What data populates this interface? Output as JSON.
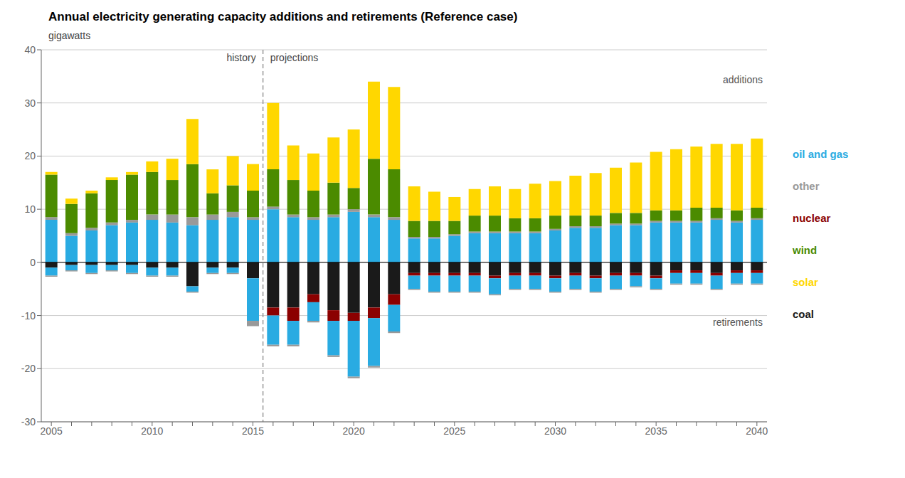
{
  "chart_data": {
    "type": "bar",
    "title": "Annual electricity generating capacity additions and retirements (Reference case)",
    "ylabel": "gigawatts",
    "stacked": true,
    "grid": true,
    "legend": "right",
    "categories": [
      "2005",
      null,
      null,
      null,
      null,
      "2010",
      null,
      null,
      null,
      null,
      "2015",
      null,
      null,
      null,
      null,
      "2020",
      null,
      null,
      null,
      null,
      "2025",
      null,
      null,
      null,
      null,
      "2030",
      null,
      null,
      null,
      null,
      "2035",
      null,
      null,
      null,
      null,
      "2040"
    ],
    "series": [
      {
        "name": "oil and gas",
        "color": "#29ABE2",
        "values": [
          8.0,
          5.0,
          6.0,
          7.0,
          7.5,
          8.0,
          7.5,
          7.0,
          8.0,
          8.5,
          8.0,
          10.0,
          8.5,
          8.0,
          8.5,
          9.5,
          8.5,
          8.0,
          4.5,
          4.5,
          5.0,
          5.5,
          5.5,
          5.5,
          5.5,
          6.0,
          6.5,
          6.5,
          7.0,
          7.0,
          7.5,
          7.5,
          7.5,
          8.0,
          7.5,
          8.0
        ]
      },
      {
        "name": "other",
        "color": "#999999",
        "values": [
          0.5,
          0.5,
          0.5,
          0.5,
          0.5,
          1.0,
          1.5,
          1.5,
          1.0,
          1.0,
          0.5,
          0.5,
          0.5,
          0.5,
          0.5,
          0.5,
          0.5,
          0.5,
          0.3,
          0.3,
          0.3,
          0.3,
          0.3,
          0.3,
          0.3,
          0.3,
          0.3,
          0.3,
          0.3,
          0.3,
          0.3,
          0.3,
          0.3,
          0.3,
          0.3,
          0.3
        ]
      },
      {
        "name": "nuclear",
        "color": "#8B0000",
        "values": [
          0.0,
          0.0,
          0.0,
          0.0,
          0.0,
          0.0,
          0.0,
          0.0,
          0.0,
          0.0,
          0.0,
          0.0,
          0.0,
          0.0,
          0.0,
          0.0,
          0.0,
          0.0,
          0.0,
          0.0,
          0.0,
          0.0,
          0.0,
          0.0,
          0.0,
          0.0,
          0.0,
          0.0,
          0.0,
          0.0,
          0.0,
          0.0,
          0.0,
          0.0,
          0.0,
          0.0
        ]
      },
      {
        "name": "wind",
        "color": "#4B8B00",
        "values": [
          8.0,
          5.5,
          6.5,
          8.0,
          8.5,
          8.0,
          6.5,
          10.0,
          4.0,
          5.0,
          5.0,
          7.0,
          6.5,
          5.0,
          6.0,
          4.0,
          10.5,
          9.0,
          3.0,
          3.0,
          2.5,
          3.0,
          3.0,
          2.5,
          2.5,
          2.5,
          2.0,
          2.0,
          2.0,
          2.0,
          2.0,
          2.0,
          2.5,
          2.0,
          2.0,
          2.0
        ]
      },
      {
        "name": "solar",
        "color": "#FFD700",
        "values": [
          0.5,
          1.0,
          0.5,
          0.5,
          0.5,
          2.0,
          4.0,
          8.5,
          4.5,
          5.5,
          5.0,
          12.5,
          6.5,
          7.0,
          8.5,
          11.0,
          14.5,
          15.5,
          6.5,
          5.5,
          4.5,
          5.0,
          5.5,
          5.5,
          6.5,
          6.5,
          7.5,
          8.0,
          8.5,
          9.5,
          11.0,
          11.5,
          11.5,
          12.0,
          12.5,
          13.0
        ]
      },
      {
        "name": "coal",
        "color": "#1A1A1A",
        "values": [
          -1.0,
          -0.5,
          -0.5,
          -0.5,
          -0.5,
          -1.0,
          -1.0,
          -4.5,
          -1.0,
          -1.0,
          -3.0,
          -8.5,
          -8.5,
          -6.0,
          -9.0,
          -9.5,
          -8.5,
          -6.0,
          -2.0,
          -2.0,
          -2.0,
          -2.0,
          -2.5,
          -2.0,
          -2.0,
          -2.5,
          -2.0,
          -2.5,
          -2.0,
          -2.0,
          -2.5,
          -1.5,
          -1.5,
          -2.0,
          -1.5,
          -1.5
        ]
      },
      {
        "name": "nuclear",
        "color": "#8B0000",
        "values": [
          0.0,
          0.0,
          0.0,
          0.0,
          0.0,
          0.0,
          0.0,
          0.0,
          0.0,
          0.0,
          0.0,
          -1.5,
          -2.5,
          -1.5,
          -2.0,
          -1.5,
          -2.0,
          -2.0,
          -0.5,
          -0.5,
          -0.5,
          -0.5,
          -0.5,
          -0.5,
          -0.5,
          -0.5,
          -0.5,
          -0.5,
          -0.5,
          -0.5,
          -0.5,
          -0.5,
          -0.5,
          -0.5,
          -0.5,
          -0.5
        ]
      },
      {
        "name": "oil and gas",
        "color": "#29ABE2",
        "values": [
          -1.5,
          -1.0,
          -1.5,
          -1.0,
          -1.5,
          -1.5,
          -1.5,
          -1.0,
          -1.0,
          -1.0,
          -8.0,
          -5.5,
          -4.5,
          -3.5,
          -6.5,
          -10.5,
          -9.0,
          -5.0,
          -2.5,
          -3.0,
          -3.0,
          -3.0,
          -3.0,
          -2.5,
          -2.5,
          -2.5,
          -2.5,
          -2.5,
          -2.5,
          -2.0,
          -2.0,
          -2.0,
          -2.0,
          -2.5,
          -2.0,
          -2.0
        ]
      },
      {
        "name": "other",
        "color": "#999999",
        "values": [
          -0.2,
          -0.2,
          -0.2,
          -0.2,
          -0.2,
          -0.2,
          -0.2,
          -0.2,
          -0.2,
          -0.2,
          -1.0,
          -0.3,
          -0.3,
          -0.3,
          -0.3,
          -0.3,
          -0.3,
          -0.3,
          -0.2,
          -0.2,
          -0.2,
          -0.2,
          -0.2,
          -0.2,
          -0.2,
          -0.2,
          -0.2,
          -0.2,
          -0.2,
          -0.2,
          -0.2,
          -0.2,
          -0.2,
          -0.2,
          -0.2,
          -0.2
        ]
      }
    ],
    "ylim": [
      -30,
      40
    ],
    "yticks": [
      -30,
      -20,
      -10,
      0,
      10,
      20,
      30,
      40
    ],
    "divider": {
      "after": "2015",
      "labels": [
        "history",
        "projections"
      ]
    },
    "annotations": [
      "additions",
      "retirements"
    ]
  }
}
